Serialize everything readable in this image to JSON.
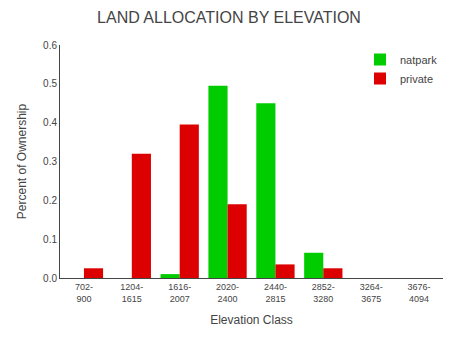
{
  "chart_data": {
    "type": "bar",
    "title": "LAND ALLOCATION BY ELEVATION",
    "xlabel": "Elevation Class",
    "ylabel": "Percent of Ownership",
    "categories": [
      "702-\n900",
      "1204-\n1615",
      "1616-\n2007",
      "2020-\n2400",
      "2440-\n2815",
      "2852-\n3280",
      "3264-\n3675",
      "3676-\n4094"
    ],
    "series": [
      {
        "name": "natpark",
        "color": "#00CC00",
        "values": [
          0.0,
          0.0,
          0.01,
          0.495,
          0.45,
          0.065,
          0.0,
          0.0
        ]
      },
      {
        "name": "private",
        "color": "#DD0000",
        "values": [
          0.025,
          0.32,
          0.395,
          0.19,
          0.035,
          0.025,
          0.0,
          0.0
        ]
      }
    ],
    "ylim": [
      0,
      0.6
    ],
    "yticks": [
      {
        "value": 0,
        "label": "0.0"
      },
      0.1,
      0.2,
      0.3,
      0.4,
      0.5,
      0.6
    ],
    "grid": false,
    "legend": "upper right"
  }
}
